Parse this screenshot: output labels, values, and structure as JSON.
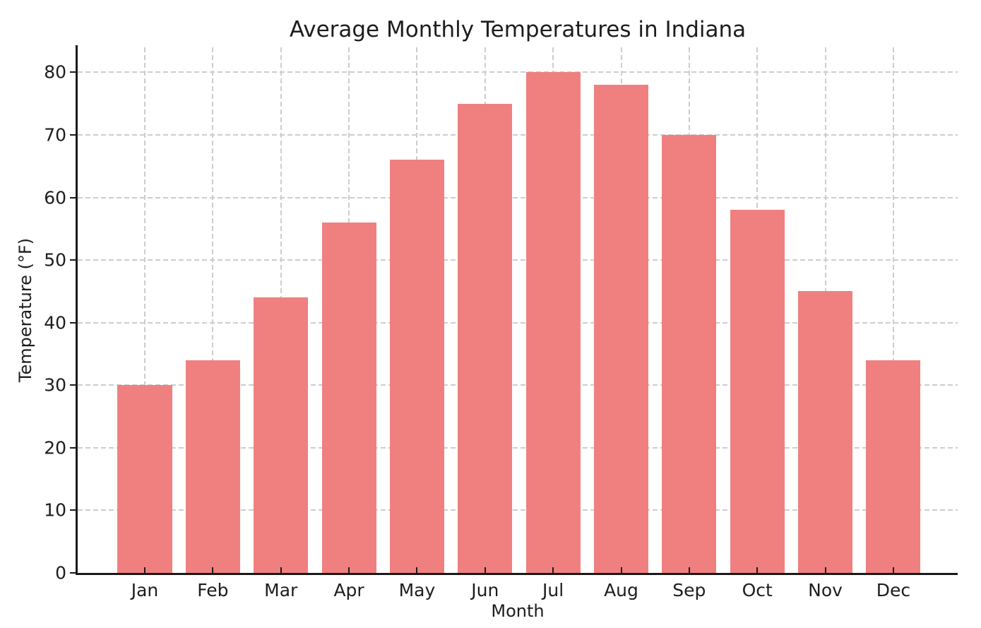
{
  "chart_data": {
    "type": "bar",
    "title": "Average Monthly Temperatures in Indiana",
    "xlabel": "Month",
    "ylabel": "Temperature (°F)",
    "categories": [
      "Jan",
      "Feb",
      "Mar",
      "Apr",
      "May",
      "Jun",
      "Jul",
      "Aug",
      "Sep",
      "Oct",
      "Nov",
      "Dec"
    ],
    "values": [
      30,
      34,
      44,
      56,
      66,
      75,
      80,
      78,
      70,
      58,
      45,
      34
    ],
    "yticks": [
      0,
      10,
      20,
      30,
      40,
      50,
      60,
      70,
      80
    ],
    "ylim": [
      0,
      84
    ],
    "bar_color": "#F08080",
    "grid": "dashed",
    "grid_color": "#cdcdcd",
    "spine_color": "#1a1a1a",
    "text_color": "#1d1d1d",
    "legend": null
  }
}
